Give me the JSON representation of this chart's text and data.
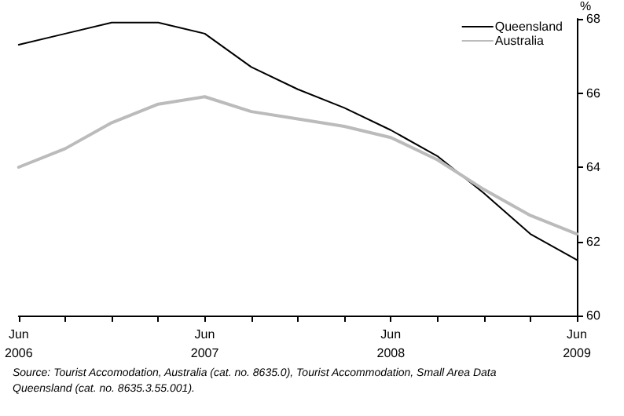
{
  "chart_data": {
    "type": "line",
    "ylabel": "%",
    "categories": [
      "Jun\n2006",
      null,
      null,
      null,
      "Jun\n2007",
      null,
      null,
      null,
      "Jun\n2008",
      null,
      null,
      null,
      "Jun\n2009"
    ],
    "series": [
      {
        "name": "Queensland",
        "color": "#000000",
        "values": [
          67.3,
          67.6,
          67.9,
          67.9,
          67.6,
          66.7,
          66.1,
          65.6,
          65.0,
          64.3,
          63.3,
          62.2,
          61.5
        ]
      },
      {
        "name": "Australia",
        "color": "#bbbbbb",
        "values": [
          64.0,
          64.5,
          65.2,
          65.7,
          65.9,
          65.5,
          65.3,
          65.1,
          64.8,
          64.2,
          63.4,
          62.7,
          62.2
        ]
      }
    ],
    "ylim": [
      60,
      68
    ],
    "yticks": [
      60,
      62,
      64,
      66,
      68
    ],
    "grid": false,
    "legend": "top right",
    "marker": "none",
    "line_style": "solid",
    "annotations": [
      "Source: Tourist Accomodation, Australia (cat. no. 8635.0), Tourist Accommodation, Small Area Data\nQueensland (cat. no. 8635.3.55.001)."
    ]
  }
}
